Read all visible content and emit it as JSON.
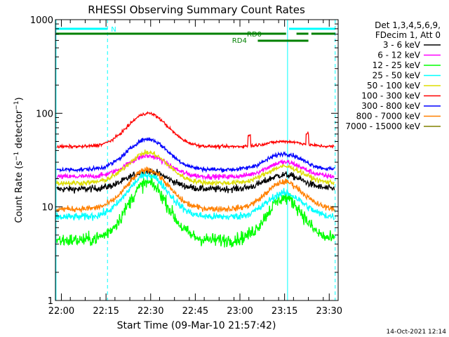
{
  "chart_data": {
    "type": "line",
    "title": "RHESSI Observing Summary Count Rates",
    "xlabel": "Start Time (09-Mar-10 21:57:42)",
    "ylabel": "Count Rate (s⁻¹ detector⁻¹)",
    "y_scale": "log",
    "ylim": [
      1,
      1000
    ],
    "x_range_min": [
      -2,
      93
    ],
    "y_ticks": [
      {
        "value": 1,
        "label": "1"
      },
      {
        "value": 10,
        "label": "10"
      },
      {
        "value": 100,
        "label": "100"
      },
      {
        "value": 1000,
        "label": "1000"
      }
    ],
    "x_ticks": [
      {
        "value": 0,
        "label": "22:00"
      },
      {
        "value": 15,
        "label": "22:15"
      },
      {
        "value": 30,
        "label": "22:30"
      },
      {
        "value": 45,
        "label": "22:45"
      },
      {
        "value": 60,
        "label": "23:00"
      },
      {
        "value": 75,
        "label": "23:15"
      },
      {
        "value": 90,
        "label": "23:30"
      }
    ],
    "legend_header": [
      "Det 1,3,4,5,6,9,",
      "FDecim 1, Att 0"
    ],
    "legend_position": "right",
    "grid": false,
    "series": [
      {
        "name": "3 - 6 keV",
        "color": "#000000",
        "base": 15.5,
        "peak1": 24,
        "peak2": 22,
        "noise": 0.08
      },
      {
        "name": "6 - 12 keV",
        "color": "#ff00ff",
        "base": 21,
        "peak1": 35,
        "peak2": 30,
        "noise": 0.06
      },
      {
        "name": "12 - 25 keV",
        "color": "#00ff00",
        "base": 4.4,
        "peak1": 18,
        "peak2": 12.5,
        "noise": 0.16
      },
      {
        "name": "25 - 50 keV",
        "color": "#00ffff",
        "base": 7.8,
        "peak1": 22,
        "peak2": 14,
        "noise": 0.09
      },
      {
        "name": "50 - 100 keV",
        "color": "#dddd00",
        "base": 18,
        "peak1": 38,
        "peak2": 27,
        "noise": 0.06
      },
      {
        "name": "100 - 300 keV",
        "color": "#ff0000",
        "base": 44,
        "peak1": 100,
        "peak2": 50,
        "noise": 0.035
      },
      {
        "name": "300 - 800 keV",
        "color": "#0000ff",
        "base": 25,
        "peak1": 53,
        "peak2": 37,
        "noise": 0.05
      },
      {
        "name": "800 - 7000 keV",
        "color": "#ff8000",
        "base": 9.5,
        "peak1": 25,
        "peak2": 18.5,
        "noise": 0.07
      },
      {
        "name": "7000 - 15000 keV",
        "color": "#808000",
        "base": 0,
        "peak1": 0,
        "peak2": 0,
        "noise": 0
      }
    ],
    "peaks_time_min": [
      29,
      75
    ],
    "spike_times_min": [
      63.5,
      83
    ],
    "vertical_markers_min": [
      {
        "t": -1.8,
        "style": "solid",
        "color": "#00ffff"
      },
      {
        "t": 15.5,
        "style": "dashed",
        "color": "#00ffff"
      },
      {
        "t": 76,
        "style": "solid",
        "color": "#00ffff"
      },
      {
        "t": 92,
        "style": "dashed",
        "color": "#00ffff"
      }
    ],
    "flag_bars": [
      {
        "label": "N",
        "color": "#00ffff",
        "value_level": 820,
        "segments": [
          [
            -1.8,
            15.5
          ],
          [
            76.5,
            92
          ]
        ]
      },
      {
        "label": "RD0",
        "color": "#008000",
        "value_level": 670,
        "segments": [
          [
            -1.8,
            75.5
          ],
          [
            79,
            83
          ],
          [
            84,
            92
          ]
        ]
      },
      {
        "label": "RD4",
        "color": "#008000",
        "value_level": 560,
        "segments": [
          [
            66,
            83
          ]
        ]
      }
    ],
    "footer_timestamp": "14-Oct-2021 12:14"
  }
}
